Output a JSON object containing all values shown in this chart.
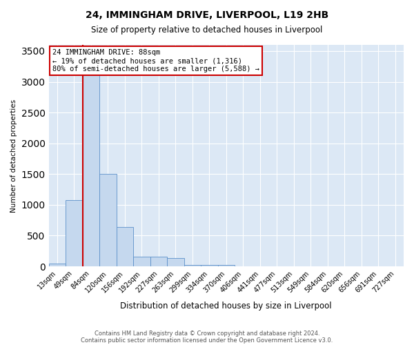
{
  "title_line1": "24, IMMINGHAM DRIVE, LIVERPOOL, L19 2HB",
  "title_line2": "Size of property relative to detached houses in Liverpool",
  "xlabel": "Distribution of detached houses by size in Liverpool",
  "ylabel": "Number of detached properties",
  "footer_line1": "Contains HM Land Registry data © Crown copyright and database right 2024.",
  "footer_line2": "Contains public sector information licensed under the Open Government Licence v3.0.",
  "annotation_line1": "24 IMMINGHAM DRIVE: 88sqm",
  "annotation_line2": "← 19% of detached houses are smaller (1,316)",
  "annotation_line3": "80% of semi-detached houses are larger (5,588) →",
  "bar_color": "#c5d8ee",
  "bar_edge_color": "#5a8fc9",
  "vline_color": "#cc0000",
  "background_color": "#dce8f5",
  "grid_color": "#ffffff",
  "categories": [
    "13sqm",
    "49sqm",
    "84sqm",
    "120sqm",
    "156sqm",
    "192sqm",
    "227sqm",
    "263sqm",
    "299sqm",
    "334sqm",
    "370sqm",
    "406sqm",
    "441sqm",
    "477sqm",
    "513sqm",
    "549sqm",
    "584sqm",
    "620sqm",
    "656sqm",
    "691sqm",
    "727sqm"
  ],
  "values": [
    50,
    1075,
    3350,
    1500,
    640,
    155,
    155,
    130,
    20,
    20,
    20,
    0,
    0,
    0,
    0,
    0,
    0,
    0,
    0,
    0,
    0
  ],
  "ylim": [
    0,
    3600
  ],
  "yticks": [
    0,
    500,
    1000,
    1500,
    2000,
    2500,
    3000,
    3500
  ],
  "vline_position": 1.5,
  "annot_fontsize": 7.5,
  "title1_fontsize": 10,
  "title2_fontsize": 8.5,
  "xlabel_fontsize": 8.5,
  "ylabel_fontsize": 7.5,
  "tick_fontsize": 7,
  "footer_fontsize": 6
}
